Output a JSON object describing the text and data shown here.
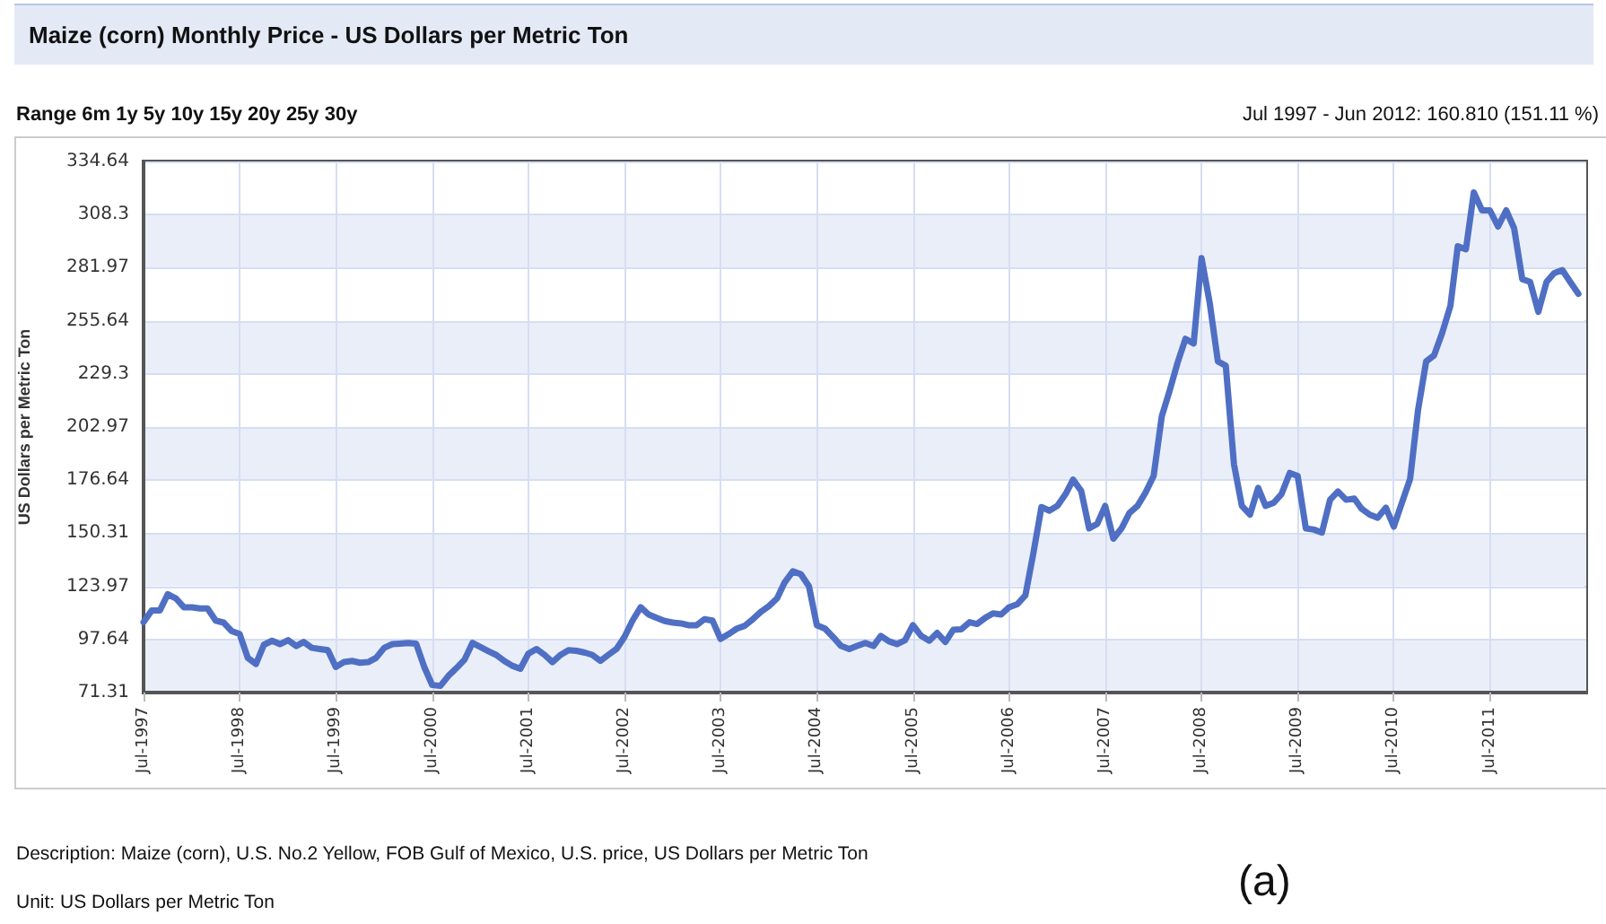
{
  "chart_data": {
    "type": "line",
    "title": "Maize (corn) Monthly Price - US Dollars per Metric Ton",
    "ylabel": "US Dollars per Metric Ton",
    "annotations": [
      "Range 6m 1y 5y 10y 15y 20y 25y 30y",
      "Jul 1997 - Jun 2012: 160.810 (151.11 %)",
      "Description: Maize (corn), U.S. No.2 Yellow, FOB Gulf of Mexico, U.S. price, US Dollars per Metric Ton",
      "Unit: US Dollars per Metric Ton",
      "(a)"
    ],
    "x": [
      "1997-07",
      "1997-08",
      "1997-09",
      "1997-10",
      "1997-11",
      "1997-12",
      "1998-01",
      "1998-02",
      "1998-03",
      "1998-04",
      "1998-05",
      "1998-06",
      "1998-07",
      "1998-08",
      "1998-09",
      "1998-10",
      "1998-11",
      "1998-12",
      "1999-01",
      "1999-02",
      "1999-03",
      "1999-04",
      "1999-05",
      "1999-06",
      "1999-07",
      "1999-08",
      "1999-09",
      "1999-10",
      "1999-11",
      "1999-12",
      "2000-01",
      "2000-02",
      "2000-03",
      "2000-04",
      "2000-05",
      "2000-06",
      "2000-07",
      "2000-08",
      "2000-09",
      "2000-10",
      "2000-11",
      "2000-12",
      "2001-01",
      "2001-02",
      "2001-03",
      "2001-04",
      "2001-05",
      "2001-06",
      "2001-07",
      "2001-08",
      "2001-09",
      "2001-10",
      "2001-11",
      "2001-12",
      "2002-01",
      "2002-02",
      "2002-03",
      "2002-04",
      "2002-05",
      "2002-06",
      "2002-07",
      "2002-08",
      "2002-09",
      "2002-10",
      "2002-11",
      "2002-12",
      "2003-01",
      "2003-02",
      "2003-03",
      "2003-04",
      "2003-05",
      "2003-06",
      "2003-07",
      "2003-08",
      "2003-09",
      "2003-10",
      "2003-11",
      "2003-12",
      "2004-01",
      "2004-02",
      "2004-03",
      "2004-04",
      "2004-05",
      "2004-06",
      "2004-07",
      "2004-08",
      "2004-09",
      "2004-10",
      "2004-11",
      "2004-12",
      "2005-01",
      "2005-02",
      "2005-03",
      "2005-04",
      "2005-05",
      "2005-06",
      "2005-07",
      "2005-08",
      "2005-09",
      "2005-10",
      "2005-11",
      "2005-12",
      "2006-01",
      "2006-02",
      "2006-03",
      "2006-04",
      "2006-05",
      "2006-06",
      "2006-07",
      "2006-08",
      "2006-09",
      "2006-10",
      "2006-11",
      "2006-12",
      "2007-01",
      "2007-02",
      "2007-03",
      "2007-04",
      "2007-05",
      "2007-06",
      "2007-07",
      "2007-08",
      "2007-09",
      "2007-10",
      "2007-11",
      "2007-12",
      "2008-01",
      "2008-02",
      "2008-03",
      "2008-04",
      "2008-05",
      "2008-06",
      "2008-07",
      "2008-08",
      "2008-09",
      "2008-10",
      "2008-11",
      "2008-12",
      "2009-01",
      "2009-02",
      "2009-03",
      "2009-04",
      "2009-05",
      "2009-06",
      "2009-07",
      "2009-08",
      "2009-09",
      "2009-10",
      "2009-11",
      "2009-12",
      "2010-01",
      "2010-02",
      "2010-03",
      "2010-04",
      "2010-05",
      "2010-06",
      "2010-07",
      "2010-08",
      "2010-09",
      "2010-10",
      "2010-11",
      "2010-12",
      "2011-01",
      "2011-02",
      "2011-03",
      "2011-04",
      "2011-05",
      "2011-06",
      "2011-07",
      "2011-08",
      "2011-09",
      "2011-10",
      "2011-11",
      "2011-12",
      "2012-01",
      "2012-02",
      "2012-03",
      "2012-04",
      "2012-05",
      "2012-06"
    ],
    "series": [
      {
        "color": "#4f6fc4",
        "values": [
          106.2,
          112,
          112,
          120.1,
          118,
          113.6,
          113.6,
          113,
          113,
          107,
          106,
          101.8,
          100.3,
          88.5,
          85.5,
          95,
          97,
          95.3,
          97.3,
          94.4,
          96.4,
          93.5,
          92.9,
          92.3,
          84,
          86.4,
          87,
          86.1,
          86.4,
          88.5,
          93.5,
          95.3,
          95.6,
          95.9,
          95.6,
          84,
          75.1,
          74.6,
          79.6,
          83.4,
          87.6,
          95.9,
          93.8,
          91.7,
          90,
          87,
          84.6,
          83.1,
          90.5,
          92.9,
          90,
          86.4,
          90,
          92.3,
          92,
          91.1,
          90,
          87,
          90,
          92.9,
          98.8,
          107,
          113.6,
          110,
          108.3,
          106.8,
          106,
          105.6,
          104.7,
          104.7,
          107.7,
          107,
          97.9,
          100.3,
          103,
          104.4,
          107.7,
          111.3,
          114.2,
          118,
          126,
          131.4,
          130,
          124,
          104.7,
          103,
          98.8,
          94.4,
          92.9,
          94.4,
          95.9,
          94.4,
          99.4,
          96.7,
          95.3,
          97.3,
          104.7,
          99.4,
          97,
          100.9,
          96.4,
          102.4,
          102.7,
          106.2,
          105.3,
          108.3,
          110.6,
          110,
          113.6,
          115.1,
          119.5,
          140.2,
          163.3,
          161.5,
          163.9,
          169.8,
          176.9,
          171.3,
          152.7,
          155,
          163.9,
          147.6,
          152.7,
          160.3,
          163.9,
          170.4,
          178.7,
          208.3,
          220.7,
          234.9,
          246.7,
          244.4,
          286.7,
          264.5,
          235.5,
          233.4,
          184.6,
          163.9,
          159.5,
          172.8,
          163.9,
          165.4,
          169.8,
          180.2,
          178.7,
          152.7,
          152.1,
          150.6,
          166.9,
          171,
          166.9,
          167.5,
          162.4,
          159.5,
          158,
          163,
          153.6,
          165.4,
          177.2,
          211.2,
          235.5,
          238.5,
          249.7,
          263,
          292.6,
          291.1,
          319.3,
          310.4,
          310.4,
          302.4,
          310.4,
          301.5,
          276.3,
          274.9,
          260.1,
          274.9,
          279.3,
          280.8,
          274.9,
          269
        ]
      }
    ],
    "xlim": [
      "1997-07",
      "2012-07"
    ],
    "xticks": [
      {
        "value": "1997-07",
        "label": "Jul-1997"
      },
      {
        "value": "1998-07",
        "label": "Jul-1998"
      },
      {
        "value": "1999-07",
        "label": "Jul-1999"
      },
      {
        "value": "2000-07",
        "label": "Jul-2000"
      },
      {
        "value": "2001-07",
        "label": "Jul-2001"
      },
      {
        "value": "2002-07",
        "label": "Jul-2002"
      },
      {
        "value": "2003-07",
        "label": "Jul-2003"
      },
      {
        "value": "2004-07",
        "label": "Jul-2004"
      },
      {
        "value": "2005-07",
        "label": "Jul-2005"
      },
      {
        "value": "2006-07",
        "label": "Jul-2006"
      },
      {
        "value": "2007-07",
        "label": "Jul-2007"
      },
      {
        "value": "2008-07",
        "label": "Jul-2008"
      },
      {
        "value": "2009-07",
        "label": "Jul-2009"
      },
      {
        "value": "2010-07",
        "label": "Jul-2010"
      },
      {
        "value": "2011-07",
        "label": "Jul-2011"
      }
    ],
    "ylim": [
      71.31,
      334.64
    ],
    "yticks": [
      71.31,
      97.64,
      123.97,
      150.31,
      176.64,
      202.97,
      229.3,
      255.64,
      281.97,
      308.3,
      334.64
    ],
    "grid": true,
    "marker": "none",
    "line_style": "solid"
  }
}
